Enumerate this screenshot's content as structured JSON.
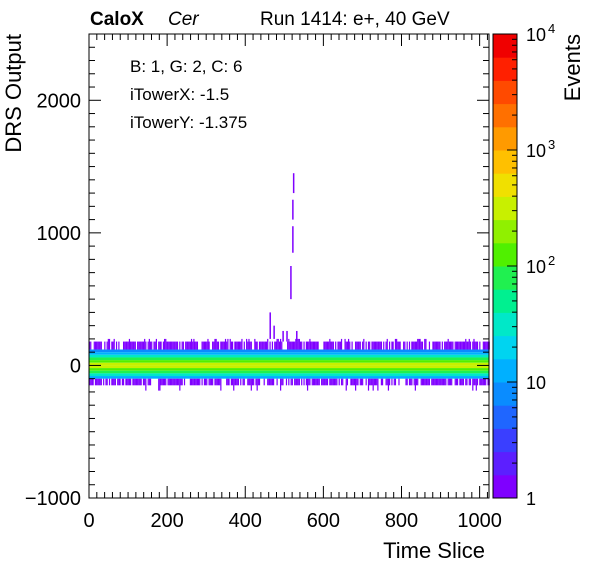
{
  "header": {
    "brand": "CaloX",
    "channel": "Cer",
    "run_info": "Run 1414: e+, 40 GeV"
  },
  "info_box": {
    "line1": "B: 1, G: 2, C: 6",
    "line2": "iTowerX: -1.5",
    "line3": "iTowerY: -1.375"
  },
  "chart_data": {
    "type": "heatmap",
    "xlabel": "Time Slice",
    "ylabel": "DRS Output",
    "zlabel": "Events",
    "xlim": [
      0,
      1024
    ],
    "ylim": [
      -1000,
      2500
    ],
    "zlim": [
      1,
      10000
    ],
    "z_scale": "log",
    "x_ticks": [
      0,
      200,
      400,
      600,
      800,
      1000
    ],
    "y_ticks": [
      -1000,
      0,
      1000,
      2000
    ],
    "z_tick_labels": [
      {
        "value": 1,
        "base": "1",
        "exp": ""
      },
      {
        "value": 10,
        "base": "10",
        "exp": ""
      },
      {
        "value": 100,
        "base": "10",
        "exp": "2"
      },
      {
        "value": 1000,
        "base": "10",
        "exp": "3"
      },
      {
        "value": 10000,
        "base": "10",
        "exp": "4"
      }
    ],
    "bands": [
      {
        "y_low": 100,
        "y_high": 120,
        "events": 8
      },
      {
        "y_low": 80,
        "y_high": 100,
        "events": 15
      },
      {
        "y_low": 60,
        "y_high": 80,
        "events": 30
      },
      {
        "y_low": 40,
        "y_high": 60,
        "events": 70
      },
      {
        "y_low": 20,
        "y_high": 40,
        "events": 150
      },
      {
        "y_low": 0,
        "y_high": 20,
        "events": 260
      },
      {
        "y_low": -20,
        "y_high": 0,
        "events": 260
      },
      {
        "y_low": -40,
        "y_high": -20,
        "events": 150
      },
      {
        "y_low": -60,
        "y_high": -40,
        "events": 70
      },
      {
        "y_low": -80,
        "y_high": -60,
        "events": 30
      },
      {
        "y_low": -100,
        "y_high": -80,
        "events": 10
      }
    ],
    "sparse_rows": [
      {
        "y_low": -150,
        "y_high": -100,
        "events": 1
      },
      {
        "y_low": 120,
        "y_high": 180,
        "events": 1
      }
    ],
    "pulse": [
      {
        "x": 462,
        "y_low": 200,
        "y_high": 400,
        "events": 1
      },
      {
        "x": 472,
        "y_low": 200,
        "y_high": 300,
        "events": 1
      },
      {
        "x": 495,
        "y_low": 180,
        "y_high": 260,
        "events": 1
      },
      {
        "x": 505,
        "y_low": 180,
        "y_high": 260,
        "events": 1
      },
      {
        "x": 515,
        "y_low": 500,
        "y_high": 750,
        "events": 1
      },
      {
        "x": 520,
        "y_low": 850,
        "y_high": 1050,
        "events": 1
      },
      {
        "x": 520,
        "y_low": 1100,
        "y_high": 1250,
        "events": 1
      },
      {
        "x": 522,
        "y_low": 1300,
        "y_high": 1450,
        "events": 1
      },
      {
        "x": 530,
        "y_low": 180,
        "y_high": 260,
        "events": 1
      }
    ],
    "palette": [
      "#7f00ff",
      "#5c1fff",
      "#3a3fff",
      "#1f66ff",
      "#0a8cff",
      "#00b0ff",
      "#00d4f0",
      "#00e8c8",
      "#00f090",
      "#20f050",
      "#50f000",
      "#90f000",
      "#c8f000",
      "#f0e000",
      "#ffc000",
      "#ff9a00",
      "#ff7000",
      "#ff4a00",
      "#ff2000",
      "#f00000"
    ]
  }
}
